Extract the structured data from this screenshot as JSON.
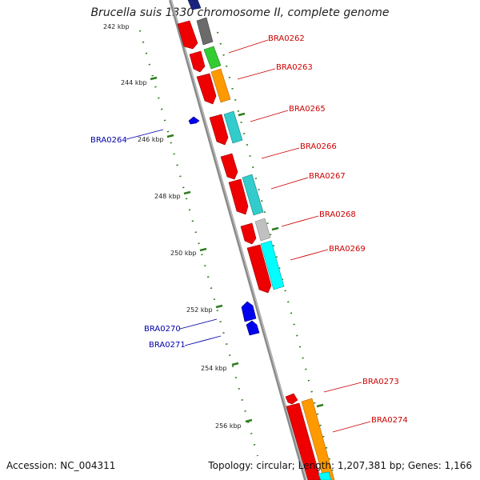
{
  "title": "Brucella suis 1330 chromosome II, complete genome",
  "footer": {
    "accession": "Accession: NC_004311",
    "summary": "Topology: circular; Length: 1,207,381 bp; Genes: 1,166"
  },
  "colors": {
    "backbone": "#8a8a8a",
    "tick": "#2e7d1e",
    "gene_label_forward": "#cc0000",
    "gene_label_reverse": "#0000aa"
  },
  "scale_ticks": [
    {
      "label": "242 kbp"
    },
    {
      "label": "244 kbp"
    },
    {
      "label": "246 kbp"
    },
    {
      "label": "248 kbp"
    },
    {
      "label": "250 kbp"
    },
    {
      "label": "252 kbp"
    },
    {
      "label": "254 kbp"
    },
    {
      "label": "256 kbp"
    }
  ],
  "gene_labels": [
    {
      "name": "BRA0262",
      "strand": "forward"
    },
    {
      "name": "BRA0263",
      "strand": "forward"
    },
    {
      "name": "BRA0265",
      "strand": "forward"
    },
    {
      "name": "BRA0266",
      "strand": "forward"
    },
    {
      "name": "BRA0267",
      "strand": "forward"
    },
    {
      "name": "BRA0268",
      "strand": "forward"
    },
    {
      "name": "BRA0269",
      "strand": "forward"
    },
    {
      "name": "BRA0273",
      "strand": "forward"
    },
    {
      "name": "BRA0274",
      "strand": "forward"
    },
    {
      "name": "BRA0264",
      "strand": "reverse"
    },
    {
      "name": "BRA0270",
      "strand": "reverse"
    },
    {
      "name": "BRA0271",
      "strand": "reverse"
    }
  ]
}
